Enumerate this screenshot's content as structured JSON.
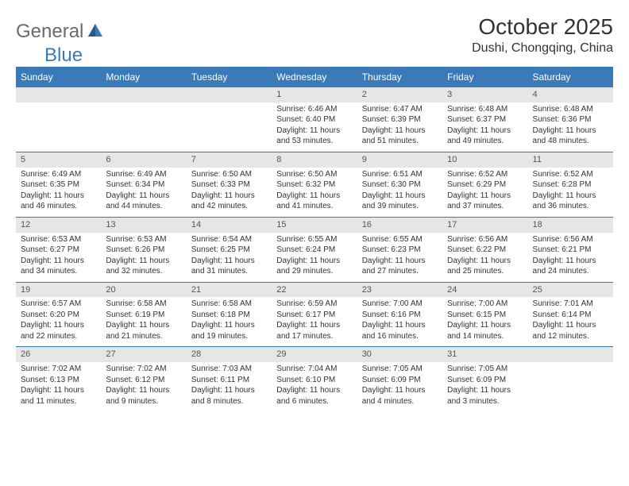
{
  "logo": {
    "text1": "General",
    "text2": "Blue"
  },
  "header": {
    "month_title": "October 2025",
    "location": "Dushi, Chongqing, China"
  },
  "colors": {
    "header_bg": "#3a7ab8",
    "header_text": "#ffffff",
    "daynum_bg": "#e6e6e6",
    "border": "#3a7ab8",
    "body_text": "#333333"
  },
  "day_labels": [
    "Sunday",
    "Monday",
    "Tuesday",
    "Wednesday",
    "Thursday",
    "Friday",
    "Saturday"
  ],
  "weeks": [
    [
      null,
      null,
      null,
      {
        "n": "1",
        "sr": "6:46 AM",
        "ss": "6:40 PM",
        "dl": "11 hours and 53 minutes."
      },
      {
        "n": "2",
        "sr": "6:47 AM",
        "ss": "6:39 PM",
        "dl": "11 hours and 51 minutes."
      },
      {
        "n": "3",
        "sr": "6:48 AM",
        "ss": "6:37 PM",
        "dl": "11 hours and 49 minutes."
      },
      {
        "n": "4",
        "sr": "6:48 AM",
        "ss": "6:36 PM",
        "dl": "11 hours and 48 minutes."
      }
    ],
    [
      {
        "n": "5",
        "sr": "6:49 AM",
        "ss": "6:35 PM",
        "dl": "11 hours and 46 minutes."
      },
      {
        "n": "6",
        "sr": "6:49 AM",
        "ss": "6:34 PM",
        "dl": "11 hours and 44 minutes."
      },
      {
        "n": "7",
        "sr": "6:50 AM",
        "ss": "6:33 PM",
        "dl": "11 hours and 42 minutes."
      },
      {
        "n": "8",
        "sr": "6:50 AM",
        "ss": "6:32 PM",
        "dl": "11 hours and 41 minutes."
      },
      {
        "n": "9",
        "sr": "6:51 AM",
        "ss": "6:30 PM",
        "dl": "11 hours and 39 minutes."
      },
      {
        "n": "10",
        "sr": "6:52 AM",
        "ss": "6:29 PM",
        "dl": "11 hours and 37 minutes."
      },
      {
        "n": "11",
        "sr": "6:52 AM",
        "ss": "6:28 PM",
        "dl": "11 hours and 36 minutes."
      }
    ],
    [
      {
        "n": "12",
        "sr": "6:53 AM",
        "ss": "6:27 PM",
        "dl": "11 hours and 34 minutes."
      },
      {
        "n": "13",
        "sr": "6:53 AM",
        "ss": "6:26 PM",
        "dl": "11 hours and 32 minutes."
      },
      {
        "n": "14",
        "sr": "6:54 AM",
        "ss": "6:25 PM",
        "dl": "11 hours and 31 minutes."
      },
      {
        "n": "15",
        "sr": "6:55 AM",
        "ss": "6:24 PM",
        "dl": "11 hours and 29 minutes."
      },
      {
        "n": "16",
        "sr": "6:55 AM",
        "ss": "6:23 PM",
        "dl": "11 hours and 27 minutes."
      },
      {
        "n": "17",
        "sr": "6:56 AM",
        "ss": "6:22 PM",
        "dl": "11 hours and 25 minutes."
      },
      {
        "n": "18",
        "sr": "6:56 AM",
        "ss": "6:21 PM",
        "dl": "11 hours and 24 minutes."
      }
    ],
    [
      {
        "n": "19",
        "sr": "6:57 AM",
        "ss": "6:20 PM",
        "dl": "11 hours and 22 minutes."
      },
      {
        "n": "20",
        "sr": "6:58 AM",
        "ss": "6:19 PM",
        "dl": "11 hours and 21 minutes."
      },
      {
        "n": "21",
        "sr": "6:58 AM",
        "ss": "6:18 PM",
        "dl": "11 hours and 19 minutes."
      },
      {
        "n": "22",
        "sr": "6:59 AM",
        "ss": "6:17 PM",
        "dl": "11 hours and 17 minutes."
      },
      {
        "n": "23",
        "sr": "7:00 AM",
        "ss": "6:16 PM",
        "dl": "11 hours and 16 minutes."
      },
      {
        "n": "24",
        "sr": "7:00 AM",
        "ss": "6:15 PM",
        "dl": "11 hours and 14 minutes."
      },
      {
        "n": "25",
        "sr": "7:01 AM",
        "ss": "6:14 PM",
        "dl": "11 hours and 12 minutes."
      }
    ],
    [
      {
        "n": "26",
        "sr": "7:02 AM",
        "ss": "6:13 PM",
        "dl": "11 hours and 11 minutes."
      },
      {
        "n": "27",
        "sr": "7:02 AM",
        "ss": "6:12 PM",
        "dl": "11 hours and 9 minutes."
      },
      {
        "n": "28",
        "sr": "7:03 AM",
        "ss": "6:11 PM",
        "dl": "11 hours and 8 minutes."
      },
      {
        "n": "29",
        "sr": "7:04 AM",
        "ss": "6:10 PM",
        "dl": "11 hours and 6 minutes."
      },
      {
        "n": "30",
        "sr": "7:05 AM",
        "ss": "6:09 PM",
        "dl": "11 hours and 4 minutes."
      },
      {
        "n": "31",
        "sr": "7:05 AM",
        "ss": "6:09 PM",
        "dl": "11 hours and 3 minutes."
      },
      null
    ]
  ],
  "labels": {
    "sunrise": "Sunrise: ",
    "sunset": "Sunset: ",
    "daylight": "Daylight: "
  }
}
